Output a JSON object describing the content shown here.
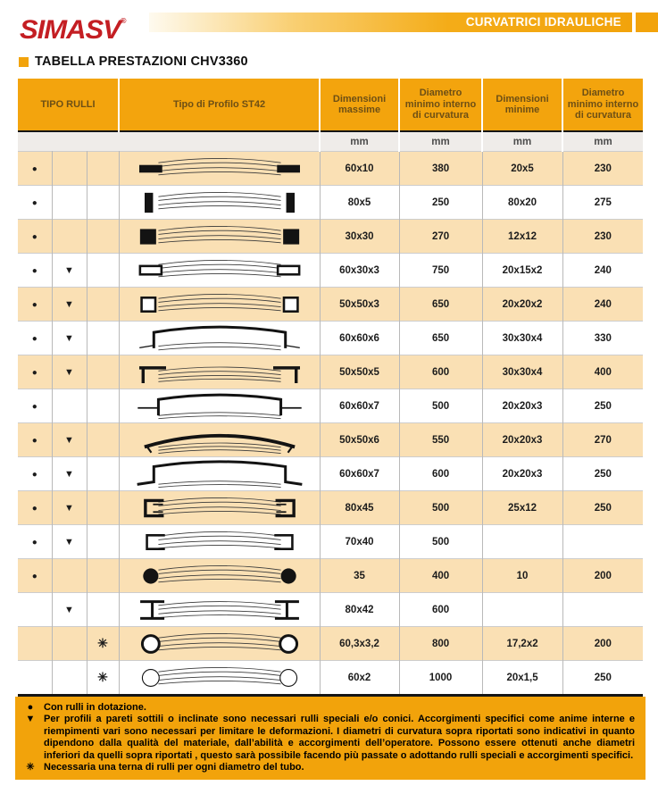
{
  "page": {
    "logo": "SIMASV",
    "logo_reg": "®",
    "banner": "CURVATRICI IDRAULICHE",
    "section_title": "TABELLA PRESTAZIONI CHV3360"
  },
  "colors": {
    "orange": "#F2A30B",
    "row_tan": "#FAE0B4",
    "header_text": "#6D4F15",
    "logo_red": "#C41E23"
  },
  "table": {
    "headers": {
      "tipo_rulli": "TIPO RULLI",
      "profilo": "Tipo di Profilo ST42",
      "dim_max": "Dimensioni massime",
      "diam_min_1": "Diametro minimo interno di curvatura",
      "dim_min": "Dimensioni minime",
      "diam_min_2": "Diametro minimo interno di curvatura"
    },
    "units": [
      "mm",
      "mm",
      "mm",
      "mm"
    ],
    "symbols": {
      "dot": "●",
      "triangle": "▼",
      "asterisk": "✳"
    },
    "rows": [
      {
        "rulli": [
          "dot",
          "",
          ""
        ],
        "profile": "flat_h",
        "values": [
          "60x10",
          "380",
          "20x5",
          "230"
        ]
      },
      {
        "rulli": [
          "dot",
          "",
          ""
        ],
        "profile": "flat_v",
        "values": [
          "80x5",
          "250",
          "80x20",
          "275"
        ]
      },
      {
        "rulli": [
          "dot",
          "",
          ""
        ],
        "profile": "square_bar",
        "values": [
          "30x30",
          "270",
          "12x12",
          "230"
        ]
      },
      {
        "rulli": [
          "dot",
          "triangle",
          ""
        ],
        "profile": "rect_tube",
        "values": [
          "60x30x3",
          "750",
          "20x15x2",
          "240"
        ]
      },
      {
        "rulli": [
          "dot",
          "triangle",
          ""
        ],
        "profile": "square_tube",
        "values": [
          "50x50x3",
          "650",
          "20x20x2",
          "240"
        ]
      },
      {
        "rulli": [
          "dot",
          "triangle",
          ""
        ],
        "profile": "angle_1",
        "values": [
          "60x60x6",
          "650",
          "30x30x4",
          "330"
        ]
      },
      {
        "rulli": [
          "dot",
          "triangle",
          ""
        ],
        "profile": "angle_2",
        "values": [
          "50x50x5",
          "600",
          "30x30x4",
          "400"
        ]
      },
      {
        "rulli": [
          "dot",
          "",
          ""
        ],
        "profile": "tee",
        "values": [
          "60x60x7",
          "500",
          "20x20x3",
          "250"
        ]
      },
      {
        "rulli": [
          "dot",
          "triangle",
          ""
        ],
        "profile": "channel_top",
        "values": [
          "50x50x6",
          "550",
          "20x20x3",
          "270"
        ]
      },
      {
        "rulli": [
          "dot",
          "triangle",
          ""
        ],
        "profile": "hat",
        "values": [
          "60x60x7",
          "600",
          "20x20x3",
          "250"
        ]
      },
      {
        "rulli": [
          "dot",
          "triangle",
          ""
        ],
        "profile": "c_channel",
        "values": [
          "80x45",
          "500",
          "25x12",
          "250"
        ]
      },
      {
        "rulli": [
          "dot",
          "triangle",
          ""
        ],
        "profile": "channel_side",
        "values": [
          "70x40",
          "500",
          "",
          ""
        ]
      },
      {
        "rulli": [
          "dot",
          "",
          ""
        ],
        "profile": "round_bar",
        "values": [
          "35",
          "400",
          "10",
          "200"
        ]
      },
      {
        "rulli": [
          "",
          "triangle",
          ""
        ],
        "profile": "i_beam",
        "values": [
          "80x42",
          "600",
          "",
          ""
        ]
      },
      {
        "rulli": [
          "",
          "",
          "asterisk"
        ],
        "profile": "tube_thick",
        "values": [
          "60,3x3,2",
          "800",
          "17,2x2",
          "200"
        ]
      },
      {
        "rulli": [
          "",
          "",
          "asterisk"
        ],
        "profile": "tube_thin",
        "values": [
          "60x2",
          "1000",
          "20x1,5",
          "250"
        ]
      }
    ]
  },
  "footnotes": [
    {
      "symbol": "●",
      "text": "Con rulli in dotazione."
    },
    {
      "symbol": "▼",
      "text": "Per profili a pareti sottili o inclinate sono necessari rulli speciali e/o conici. Accorgimenti specifici come anime interne e riempimenti vari sono necessari per limitare le deformazioni. I diametri di curvatura sopra riportati sono indicativi in quanto dipendono dalla qualità del materiale, dall’abilità e accorgimenti dell’operatore. Possono essere ottenuti anche diametri inferiori da quelli sopra riportati , questo sarà possibile facendo più passate o adottando rulli speciali e accorgimenti specifici."
    },
    {
      "symbol": "✳",
      "text": "Necessaria una terna di rulli per ogni diametro del tubo."
    }
  ]
}
